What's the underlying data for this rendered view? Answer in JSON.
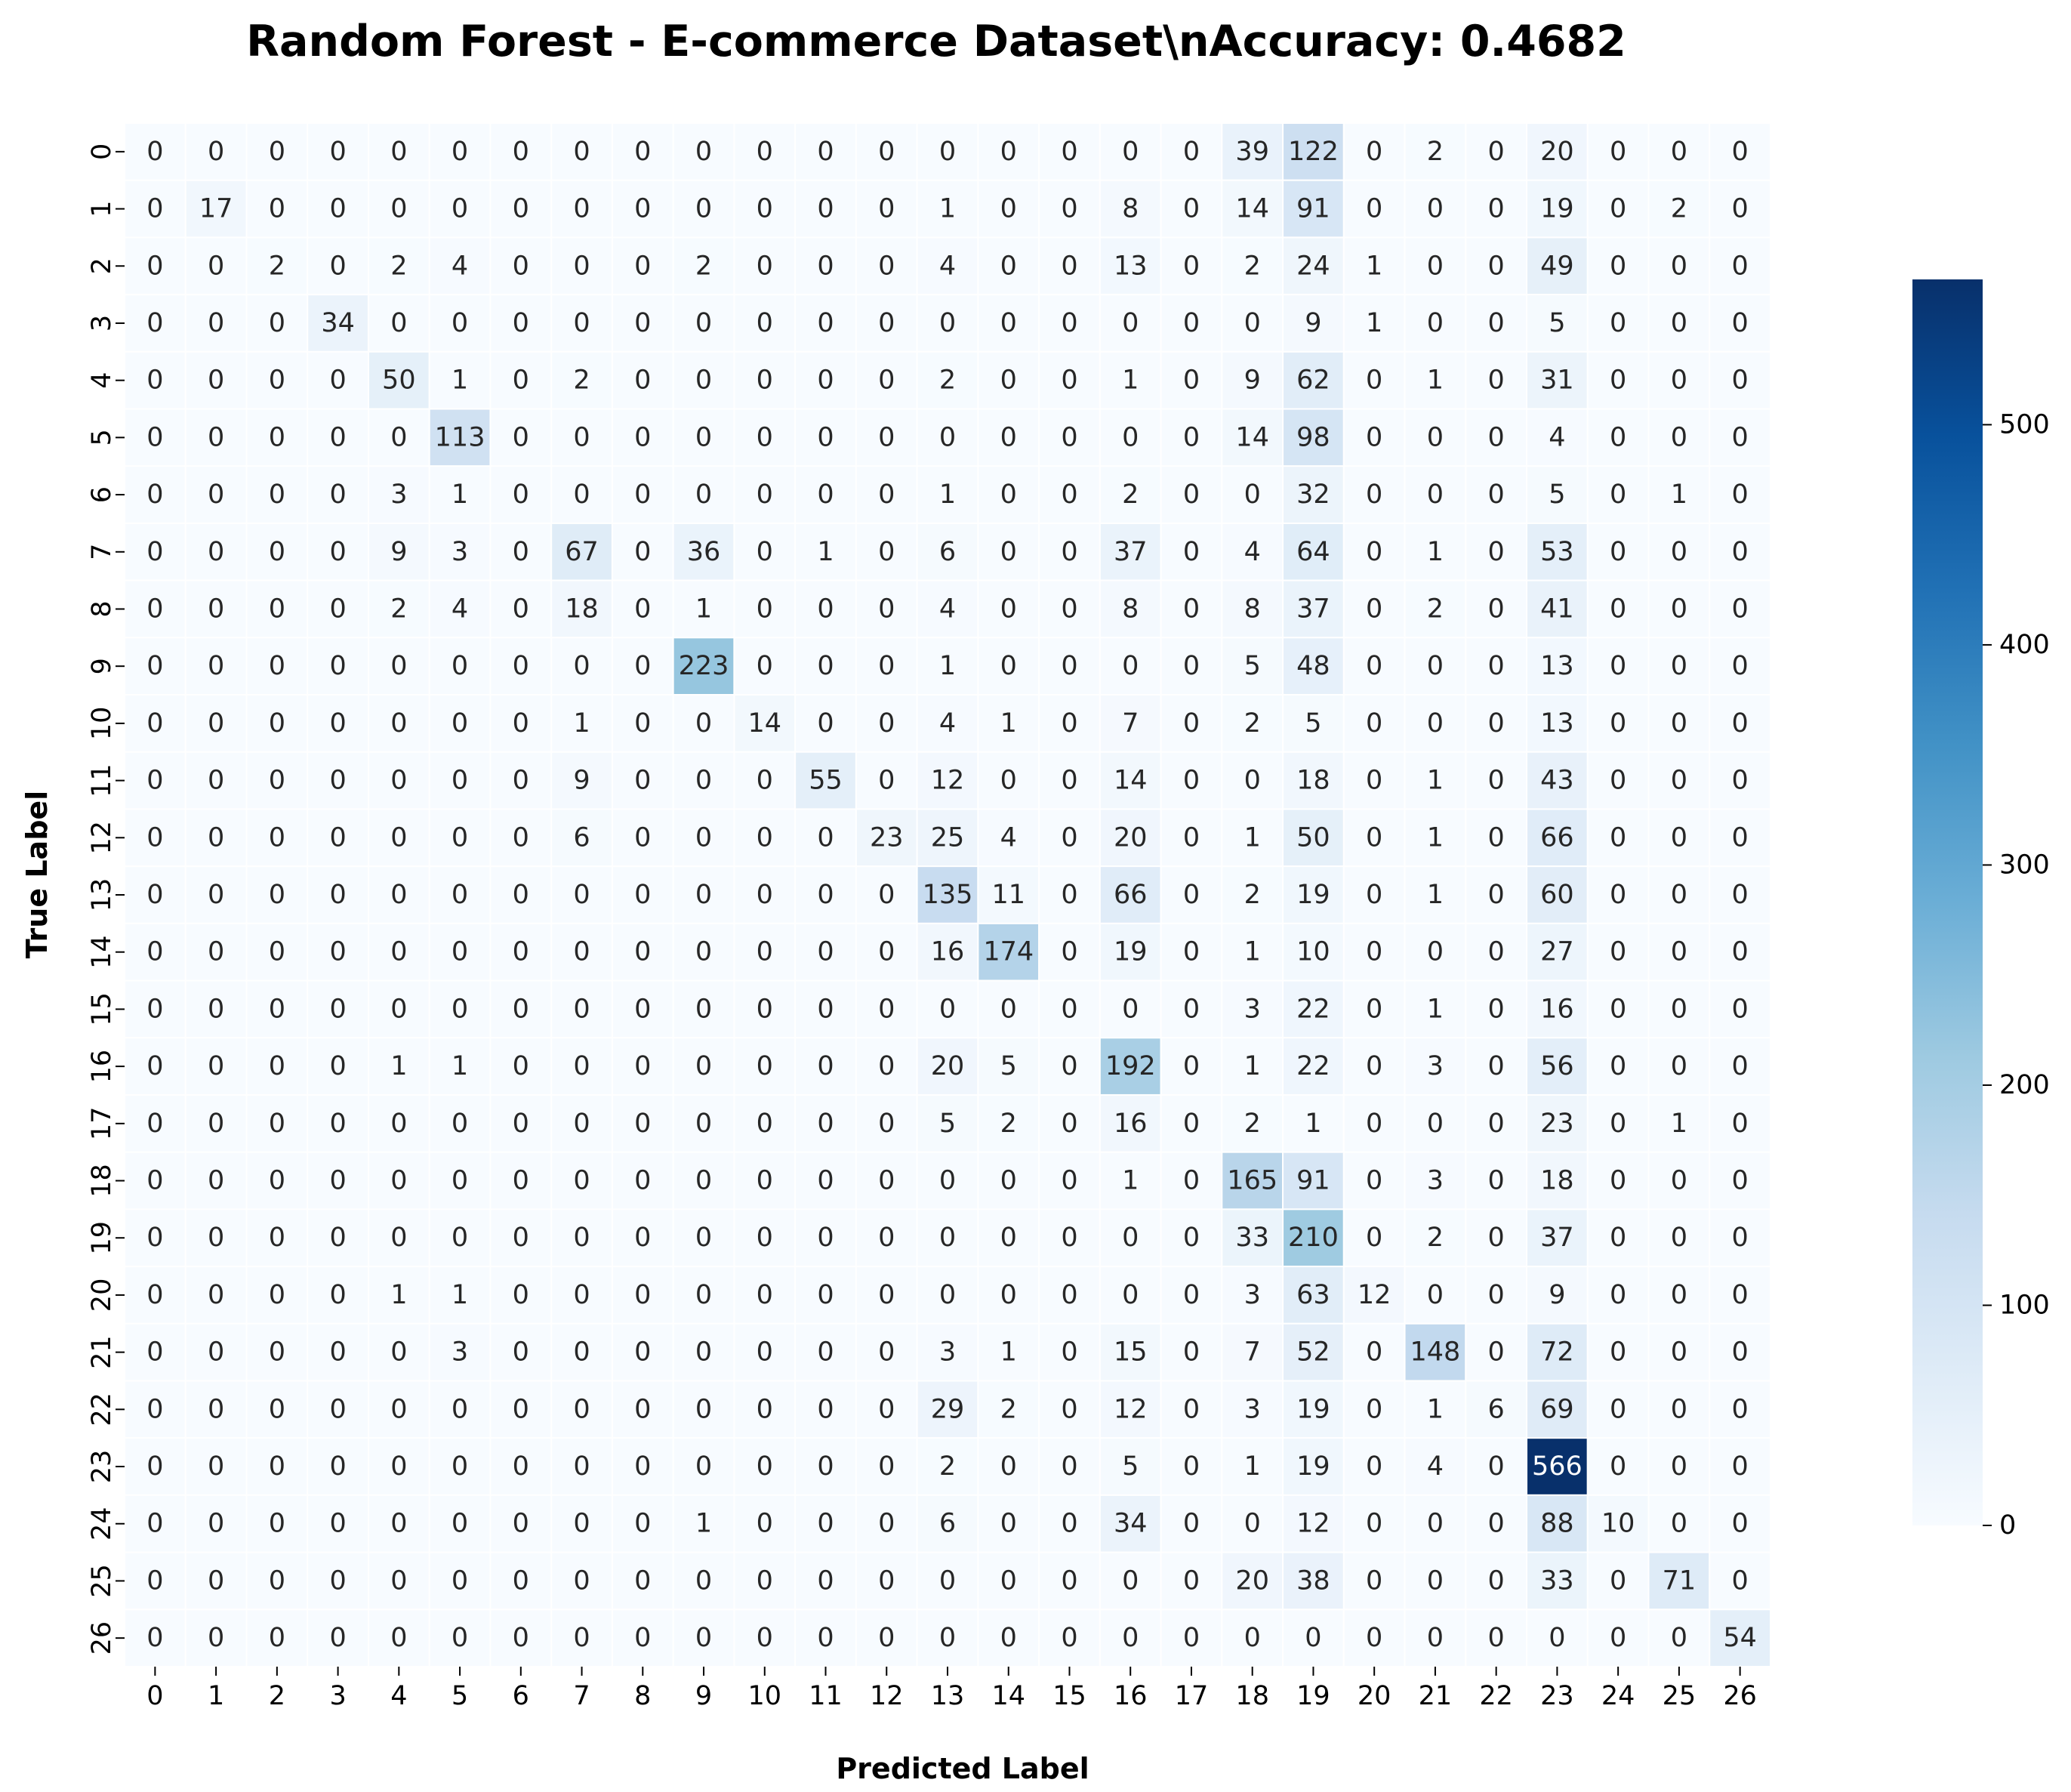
{
  "chart_data": {
    "type": "heatmap",
    "title": "Random Forest - E-commerce Dataset\\nAccuracy: 0.4682",
    "xlabel": "Predicted Label",
    "ylabel": "True Label",
    "x_tick_labels": [
      "0",
      "1",
      "2",
      "3",
      "4",
      "5",
      "6",
      "7",
      "8",
      "9",
      "10",
      "11",
      "12",
      "13",
      "14",
      "15",
      "16",
      "17",
      "18",
      "19",
      "20",
      "21",
      "22",
      "23",
      "24",
      "25",
      "26"
    ],
    "y_tick_labels": [
      "0",
      "1",
      "2",
      "3",
      "4",
      "5",
      "6",
      "7",
      "8",
      "9",
      "10",
      "11",
      "12",
      "13",
      "14",
      "15",
      "16",
      "17",
      "18",
      "19",
      "20",
      "21",
      "22",
      "23",
      "24",
      "25",
      "26"
    ],
    "matrix": [
      [
        0,
        0,
        0,
        0,
        0,
        0,
        0,
        0,
        0,
        0,
        0,
        0,
        0,
        0,
        0,
        0,
        0,
        0,
        39,
        122,
        0,
        2,
        0,
        20,
        0,
        0,
        0
      ],
      [
        0,
        17,
        0,
        0,
        0,
        0,
        0,
        0,
        0,
        0,
        0,
        0,
        0,
        1,
        0,
        0,
        8,
        0,
        14,
        91,
        0,
        0,
        0,
        19,
        0,
        2,
        0
      ],
      [
        0,
        0,
        2,
        0,
        2,
        4,
        0,
        0,
        0,
        2,
        0,
        0,
        0,
        4,
        0,
        0,
        13,
        0,
        2,
        24,
        1,
        0,
        0,
        49,
        0,
        0,
        0
      ],
      [
        0,
        0,
        0,
        34,
        0,
        0,
        0,
        0,
        0,
        0,
        0,
        0,
        0,
        0,
        0,
        0,
        0,
        0,
        0,
        9,
        1,
        0,
        0,
        5,
        0,
        0,
        0
      ],
      [
        0,
        0,
        0,
        0,
        50,
        1,
        0,
        2,
        0,
        0,
        0,
        0,
        0,
        2,
        0,
        0,
        1,
        0,
        9,
        62,
        0,
        1,
        0,
        31,
        0,
        0,
        0
      ],
      [
        0,
        0,
        0,
        0,
        0,
        113,
        0,
        0,
        0,
        0,
        0,
        0,
        0,
        0,
        0,
        0,
        0,
        0,
        14,
        98,
        0,
        0,
        0,
        4,
        0,
        0,
        0
      ],
      [
        0,
        0,
        0,
        0,
        3,
        1,
        0,
        0,
        0,
        0,
        0,
        0,
        0,
        1,
        0,
        0,
        2,
        0,
        0,
        32,
        0,
        0,
        0,
        5,
        0,
        1,
        0
      ],
      [
        0,
        0,
        0,
        0,
        9,
        3,
        0,
        67,
        0,
        36,
        0,
        1,
        0,
        6,
        0,
        0,
        37,
        0,
        4,
        64,
        0,
        1,
        0,
        53,
        0,
        0,
        0
      ],
      [
        0,
        0,
        0,
        0,
        2,
        4,
        0,
        18,
        0,
        1,
        0,
        0,
        0,
        4,
        0,
        0,
        8,
        0,
        8,
        37,
        0,
        2,
        0,
        41,
        0,
        0,
        0
      ],
      [
        0,
        0,
        0,
        0,
        0,
        0,
        0,
        0,
        0,
        223,
        0,
        0,
        0,
        1,
        0,
        0,
        0,
        0,
        5,
        48,
        0,
        0,
        0,
        13,
        0,
        0,
        0
      ],
      [
        0,
        0,
        0,
        0,
        0,
        0,
        0,
        1,
        0,
        0,
        14,
        0,
        0,
        4,
        1,
        0,
        7,
        0,
        2,
        5,
        0,
        0,
        0,
        13,
        0,
        0,
        0
      ],
      [
        0,
        0,
        0,
        0,
        0,
        0,
        0,
        9,
        0,
        0,
        0,
        55,
        0,
        12,
        0,
        0,
        14,
        0,
        0,
        18,
        0,
        1,
        0,
        43,
        0,
        0,
        0
      ],
      [
        0,
        0,
        0,
        0,
        0,
        0,
        0,
        6,
        0,
        0,
        0,
        0,
        23,
        25,
        4,
        0,
        20,
        0,
        1,
        50,
        0,
        1,
        0,
        66,
        0,
        0,
        0
      ],
      [
        0,
        0,
        0,
        0,
        0,
        0,
        0,
        0,
        0,
        0,
        0,
        0,
        0,
        135,
        11,
        0,
        66,
        0,
        2,
        19,
        0,
        1,
        0,
        60,
        0,
        0,
        0
      ],
      [
        0,
        0,
        0,
        0,
        0,
        0,
        0,
        0,
        0,
        0,
        0,
        0,
        0,
        16,
        174,
        0,
        19,
        0,
        1,
        10,
        0,
        0,
        0,
        27,
        0,
        0,
        0
      ],
      [
        0,
        0,
        0,
        0,
        0,
        0,
        0,
        0,
        0,
        0,
        0,
        0,
        0,
        0,
        0,
        0,
        0,
        0,
        3,
        22,
        0,
        1,
        0,
        16,
        0,
        0,
        0
      ],
      [
        0,
        0,
        0,
        0,
        1,
        1,
        0,
        0,
        0,
        0,
        0,
        0,
        0,
        20,
        5,
        0,
        192,
        0,
        1,
        22,
        0,
        3,
        0,
        56,
        0,
        0,
        0
      ],
      [
        0,
        0,
        0,
        0,
        0,
        0,
        0,
        0,
        0,
        0,
        0,
        0,
        0,
        5,
        2,
        0,
        16,
        0,
        2,
        1,
        0,
        0,
        0,
        23,
        0,
        1,
        0
      ],
      [
        0,
        0,
        0,
        0,
        0,
        0,
        0,
        0,
        0,
        0,
        0,
        0,
        0,
        0,
        0,
        0,
        1,
        0,
        165,
        91,
        0,
        3,
        0,
        18,
        0,
        0,
        0
      ],
      [
        0,
        0,
        0,
        0,
        0,
        0,
        0,
        0,
        0,
        0,
        0,
        0,
        0,
        0,
        0,
        0,
        0,
        0,
        33,
        210,
        0,
        2,
        0,
        37,
        0,
        0,
        0
      ],
      [
        0,
        0,
        0,
        0,
        1,
        1,
        0,
        0,
        0,
        0,
        0,
        0,
        0,
        0,
        0,
        0,
        0,
        0,
        3,
        63,
        12,
        0,
        0,
        9,
        0,
        0,
        0
      ],
      [
        0,
        0,
        0,
        0,
        0,
        3,
        0,
        0,
        0,
        0,
        0,
        0,
        0,
        3,
        1,
        0,
        15,
        0,
        7,
        52,
        0,
        148,
        0,
        72,
        0,
        0,
        0
      ],
      [
        0,
        0,
        0,
        0,
        0,
        0,
        0,
        0,
        0,
        0,
        0,
        0,
        0,
        29,
        2,
        0,
        12,
        0,
        3,
        19,
        0,
        1,
        6,
        69,
        0,
        0,
        0
      ],
      [
        0,
        0,
        0,
        0,
        0,
        0,
        0,
        0,
        0,
        0,
        0,
        0,
        0,
        2,
        0,
        0,
        5,
        0,
        1,
        19,
        0,
        4,
        0,
        566,
        0,
        0,
        0
      ],
      [
        0,
        0,
        0,
        0,
        0,
        0,
        0,
        0,
        0,
        1,
        0,
        0,
        0,
        6,
        0,
        0,
        34,
        0,
        0,
        12,
        0,
        0,
        0,
        88,
        10,
        0,
        0
      ],
      [
        0,
        0,
        0,
        0,
        0,
        0,
        0,
        0,
        0,
        0,
        0,
        0,
        0,
        0,
        0,
        0,
        0,
        0,
        20,
        38,
        0,
        0,
        0,
        33,
        0,
        71,
        0
      ],
      [
        0,
        0,
        0,
        0,
        0,
        0,
        0,
        0,
        0,
        0,
        0,
        0,
        0,
        0,
        0,
        0,
        0,
        0,
        0,
        0,
        0,
        0,
        0,
        0,
        0,
        0,
        54
      ]
    ],
    "colormap": "Blues",
    "vmin": 0,
    "vmax": 566,
    "colorbar_ticks": [
      "0",
      "100",
      "200",
      "300",
      "400",
      "500"
    ],
    "grid": false,
    "legend": "colorbar-right"
  }
}
